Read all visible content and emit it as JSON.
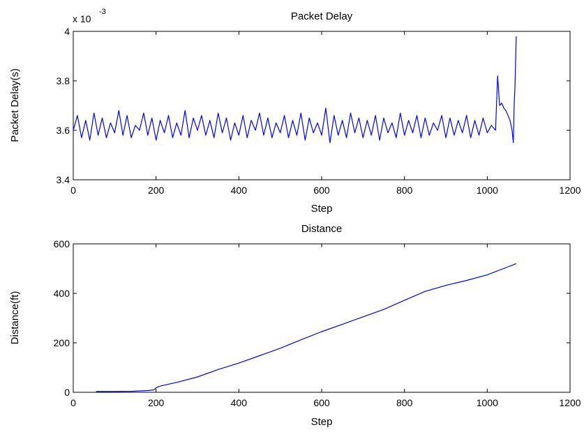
{
  "chart_data": [
    {
      "type": "line",
      "title": "Packet Delay",
      "xlabel": "Step",
      "ylabel": "Packet Delay(s)",
      "y_multiplier": "x 10",
      "y_exponent": "-3",
      "xlim": [
        0,
        1200
      ],
      "ylim": [
        3.4,
        4.0
      ],
      "xticks": [
        "0",
        "200",
        "400",
        "600",
        "800",
        "1000",
        "1200"
      ],
      "yticks": [
        "3.4",
        "3.6",
        "3.8",
        "4"
      ],
      "line_color": "#0000ff",
      "grid": false,
      "series": [
        {
          "description_pattern": "oscillating",
          "x": [
            0,
            10,
            20,
            30,
            40,
            50,
            60,
            70,
            80,
            90,
            100,
            110,
            120,
            130,
            140,
            150,
            160,
            170,
            180,
            190,
            200,
            210,
            220,
            230,
            240,
            250,
            260,
            270,
            280,
            290,
            300,
            310,
            320,
            330,
            340,
            350,
            360,
            370,
            380,
            390,
            400,
            410,
            420,
            430,
            440,
            450,
            460,
            470,
            480,
            490,
            500,
            510,
            520,
            530,
            540,
            550,
            560,
            570,
            580,
            590,
            600,
            610,
            620,
            630,
            640,
            650,
            660,
            670,
            680,
            690,
            700,
            710,
            720,
            730,
            740,
            750,
            760,
            770,
            780,
            790,
            800,
            810,
            820,
            830,
            840,
            850,
            860,
            870,
            880,
            890,
            900,
            910,
            920,
            930,
            940,
            950,
            960,
            970,
            980,
            990,
            1000,
            1010,
            1020,
            1025,
            1030,
            1035,
            1040,
            1045,
            1050,
            1055,
            1060,
            1063,
            1065,
            1067,
            1070
          ],
          "y": [
            3.6,
            3.66,
            3.57,
            3.64,
            3.56,
            3.67,
            3.58,
            3.65,
            3.57,
            3.63,
            3.59,
            3.68,
            3.58,
            3.66,
            3.57,
            3.62,
            3.6,
            3.67,
            3.58,
            3.65,
            3.56,
            3.64,
            3.59,
            3.66,
            3.57,
            3.63,
            3.58,
            3.68,
            3.57,
            3.65,
            3.6,
            3.66,
            3.58,
            3.64,
            3.57,
            3.67,
            3.59,
            3.65,
            3.56,
            3.63,
            3.58,
            3.66,
            3.57,
            3.64,
            3.6,
            3.67,
            3.58,
            3.65,
            3.57,
            3.63,
            3.59,
            3.66,
            3.57,
            3.64,
            3.58,
            3.67,
            3.56,
            3.65,
            3.59,
            3.63,
            3.58,
            3.69,
            3.55,
            3.66,
            3.58,
            3.64,
            3.57,
            3.67,
            3.59,
            3.65,
            3.57,
            3.64,
            3.58,
            3.66,
            3.56,
            3.65,
            3.59,
            3.63,
            3.57,
            3.67,
            3.58,
            3.64,
            3.59,
            3.66,
            3.57,
            3.65,
            3.58,
            3.63,
            3.6,
            3.66,
            3.57,
            3.65,
            3.58,
            3.64,
            3.59,
            3.66,
            3.57,
            3.64,
            3.58,
            3.65,
            3.59,
            3.62,
            3.6,
            3.82,
            3.7,
            3.71,
            3.69,
            3.68,
            3.66,
            3.64,
            3.6,
            3.55,
            3.7,
            3.78,
            3.98
          ]
        }
      ]
    },
    {
      "type": "line",
      "title": "Distance",
      "xlabel": "Step",
      "ylabel": "Distance(ft)",
      "xlim": [
        0,
        1200
      ],
      "ylim": [
        0,
        600
      ],
      "xticks": [
        "0",
        "200",
        "400",
        "600",
        "800",
        "1000",
        "1200"
      ],
      "yticks": [
        "0",
        "200",
        "400",
        "600"
      ],
      "line_color": "#0000ff",
      "grid": false,
      "series": [
        {
          "x": [
            55,
            100,
            140,
            180,
            195,
            200,
            210,
            250,
            300,
            350,
            400,
            450,
            500,
            550,
            600,
            650,
            700,
            750,
            800,
            850,
            900,
            950,
            1000,
            1050,
            1070
          ],
          "y": [
            3,
            3,
            4,
            7,
            10,
            18,
            25,
            40,
            62,
            92,
            118,
            148,
            178,
            212,
            245,
            275,
            305,
            335,
            372,
            408,
            432,
            452,
            475,
            507,
            520
          ]
        }
      ]
    }
  ]
}
